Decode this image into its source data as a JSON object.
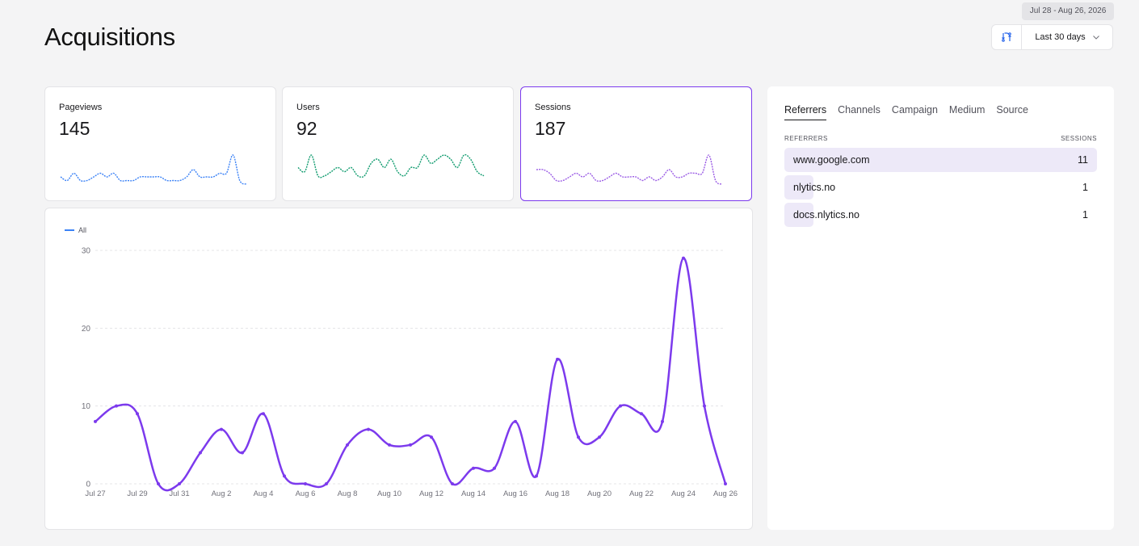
{
  "page": {
    "title": "Acquisitions"
  },
  "date_range": {
    "badge": "Jul 28 - Aug 26, 2026",
    "selected": "Last 30 days"
  },
  "stats": [
    {
      "label": "Pageviews",
      "value": "145",
      "color": "#3b82f6",
      "trend": [
        2,
        1,
        3,
        1,
        1,
        2,
        3,
        2,
        3,
        1,
        1,
        1,
        2,
        2,
        2,
        2,
        1,
        1,
        1,
        2,
        4,
        2,
        2,
        2,
        3,
        3,
        8,
        1,
        0
      ]
    },
    {
      "label": "Users",
      "value": "92",
      "color": "#0f9b6e",
      "trend": [
        4,
        3,
        7,
        2,
        2,
        3,
        4,
        3,
        4,
        2,
        2,
        5,
        6,
        4,
        6,
        3,
        2,
        4,
        4,
        7,
        5,
        6,
        7,
        6,
        4,
        7,
        6,
        3,
        2
      ]
    },
    {
      "label": "Sessions",
      "value": "187",
      "color": "#9b5de5",
      "trend": [
        4,
        4,
        3,
        1,
        1,
        2,
        3,
        2,
        3,
        1,
        1,
        2,
        3,
        2,
        2,
        2,
        1,
        2,
        1,
        2,
        4,
        2,
        2,
        3,
        3,
        3,
        8,
        1,
        0
      ]
    }
  ],
  "chart_data": {
    "type": "line",
    "legend": [
      "All"
    ],
    "x": [
      "Jul 27",
      "Jul 28",
      "Jul 29",
      "Jul 30",
      "Jul 31",
      "Aug 1",
      "Aug 2",
      "Aug 3",
      "Aug 4",
      "Aug 5",
      "Aug 6",
      "Aug 7",
      "Aug 8",
      "Aug 9",
      "Aug 10",
      "Aug 11",
      "Aug 12",
      "Aug 13",
      "Aug 14",
      "Aug 15",
      "Aug 16",
      "Aug 17",
      "Aug 18",
      "Aug 19",
      "Aug 20",
      "Aug 21",
      "Aug 22",
      "Aug 23",
      "Aug 24",
      "Aug 25",
      "Aug 26"
    ],
    "xticks": [
      "Jul 27",
      "Jul 29",
      "Jul 31",
      "Aug 2",
      "Aug 4",
      "Aug 6",
      "Aug 8",
      "Aug 10",
      "Aug 12",
      "Aug 14",
      "Aug 16",
      "Aug 18",
      "Aug 20",
      "Aug 22",
      "Aug 24",
      "Aug 26"
    ],
    "series": [
      {
        "name": "All",
        "values": [
          8,
          10,
          9,
          0,
          0,
          4,
          7,
          4,
          9,
          1,
          0,
          0,
          5,
          7,
          5,
          5,
          6,
          0,
          2,
          2,
          8,
          1,
          16,
          6,
          6,
          10,
          9,
          8,
          29,
          10,
          0
        ]
      }
    ],
    "ylim": [
      0,
      30
    ],
    "yticks": [
      0,
      10,
      20,
      30
    ],
    "grid": true,
    "line_color": "#7c3aed",
    "legend_color": "#3b82f6"
  },
  "referrers": {
    "tabs": [
      "Referrers",
      "Channels",
      "Campaign",
      "Medium",
      "Source"
    ],
    "active_tab": "Referrers",
    "col_left": "REFERRERS",
    "col_right": "SESSIONS",
    "rows": [
      {
        "name": "www.google.com",
        "sessions": "11",
        "share": 1.0
      },
      {
        "name": "nlytics.no",
        "sessions": "1",
        "share": 0.093
      },
      {
        "name": "docs.nlytics.no",
        "sessions": "1",
        "share": 0.093
      }
    ]
  }
}
